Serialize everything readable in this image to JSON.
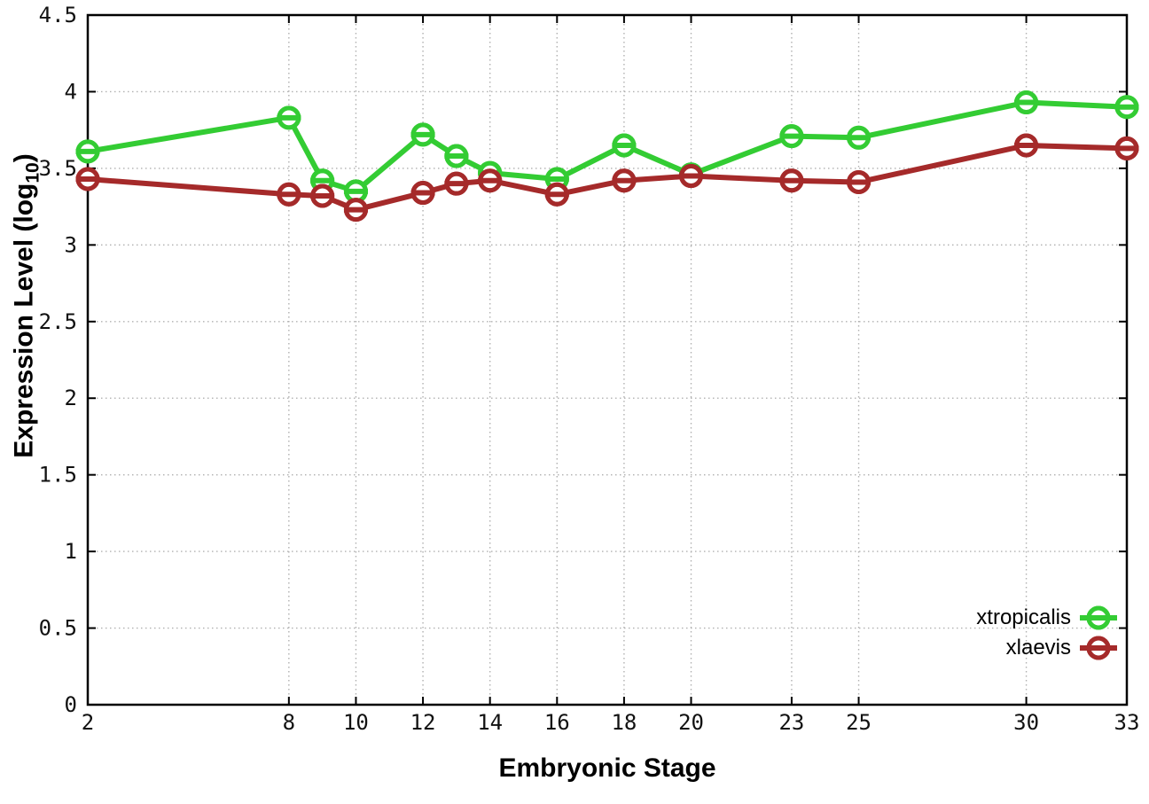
{
  "chart_data": {
    "type": "line",
    "title": "",
    "xlabel": "Embryonic Stage",
    "ylabel": "Expression Level (log10)",
    "ylabel_parts": {
      "prefix": "Expression Level (log",
      "sub": "10",
      "suffix": ")"
    },
    "x": [
      2,
      8,
      9,
      10,
      12,
      13,
      14,
      16,
      18,
      20,
      23,
      25,
      30,
      33
    ],
    "series": [
      {
        "name": "xtropicalis",
        "color": "#33cc33",
        "values": [
          3.61,
          3.83,
          3.42,
          3.35,
          3.72,
          3.58,
          3.47,
          3.43,
          3.65,
          3.46,
          3.71,
          3.7,
          3.93,
          3.9
        ]
      },
      {
        "name": "xlaevis",
        "color": "#a52a2a",
        "values": [
          3.43,
          3.33,
          3.32,
          3.23,
          3.34,
          3.4,
          3.42,
          3.33,
          3.42,
          3.45,
          3.42,
          3.41,
          3.65,
          3.63
        ]
      }
    ],
    "xticks": [
      2,
      8,
      10,
      12,
      14,
      16,
      18,
      20,
      23,
      25,
      30,
      33
    ],
    "yticks": [
      0,
      0.5,
      1,
      1.5,
      2,
      2.5,
      3,
      3.5,
      4,
      4.5
    ],
    "xlim": [
      2,
      33
    ],
    "ylim": [
      0,
      4.5
    ],
    "grid": true,
    "legend_position": "bottom-right",
    "colors": {
      "grid": "#b0b0b0",
      "border": "#000000",
      "text": "#000000",
      "marker_fill": "#ffffff"
    }
  }
}
